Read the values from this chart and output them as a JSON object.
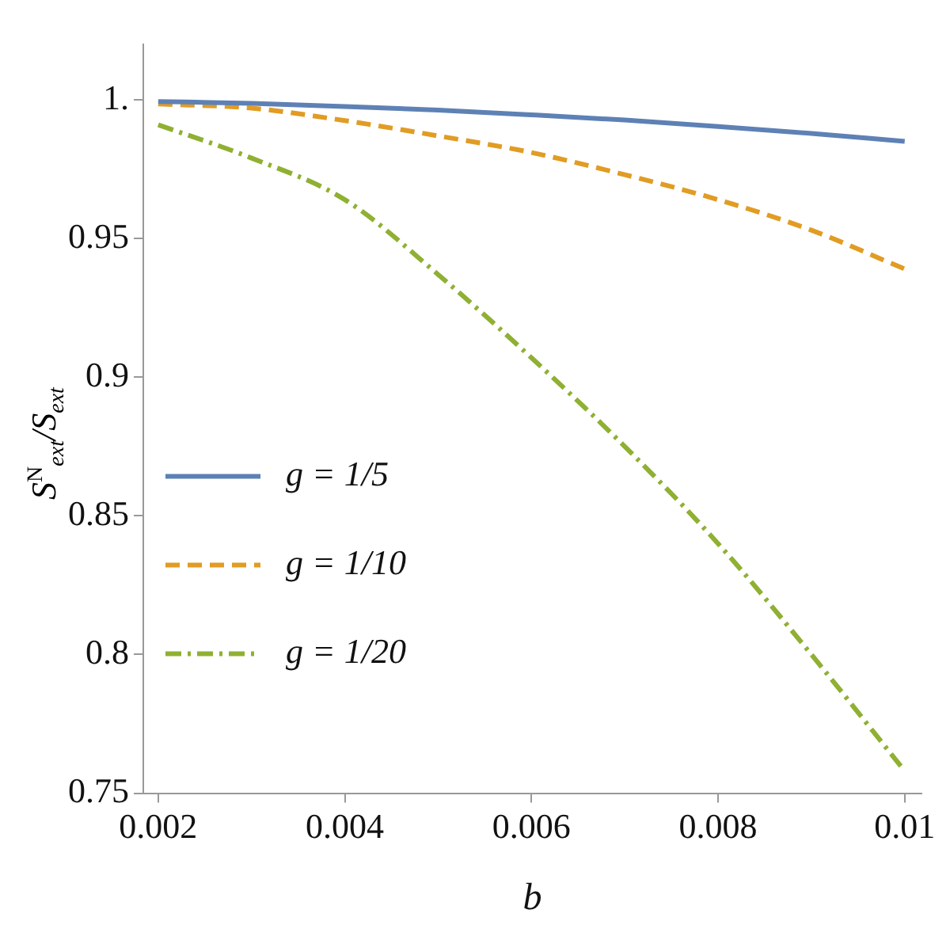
{
  "chart_data": {
    "type": "line",
    "xlabel": "b",
    "ylabel": "S$^{N}$$_{ext}$/S$_{ext}$",
    "x": [
      0.002,
      0.003,
      0.004,
      0.005,
      0.006,
      0.007,
      0.008,
      0.009,
      0.01
    ],
    "series": [
      {
        "name": "g = 1/5",
        "color": "#5e81b5",
        "line_style": "solid",
        "values": [
          0.9994,
          0.9987,
          0.9976,
          0.9963,
          0.9946,
          0.9927,
          0.9904,
          0.9879,
          0.985
        ]
      },
      {
        "name": "g = 1/10",
        "color": "#e19c24",
        "line_style": "dashed",
        "values": [
          0.9985,
          0.997,
          0.9925,
          0.987,
          0.981,
          0.973,
          0.964,
          0.953,
          0.939
        ]
      },
      {
        "name": "g = 1/20",
        "color": "#8fb032",
        "line_style": "dashdot",
        "values": [
          0.991,
          0.979,
          0.964,
          0.937,
          0.907,
          0.875,
          0.84,
          0.8,
          0.758
        ]
      }
    ],
    "xlim": [
      0.00184,
      0.01018
    ],
    "ylim": [
      0.75,
      1.02
    ],
    "xticks": [
      0.002,
      0.004,
      0.006,
      0.008,
      0.01
    ],
    "yticks": [
      0.75,
      0.8,
      0.85,
      0.9,
      0.95,
      {
        "value": 1,
        "label": "1."
      }
    ],
    "grid": false,
    "legend": "bottom left",
    "marker": "none"
  }
}
